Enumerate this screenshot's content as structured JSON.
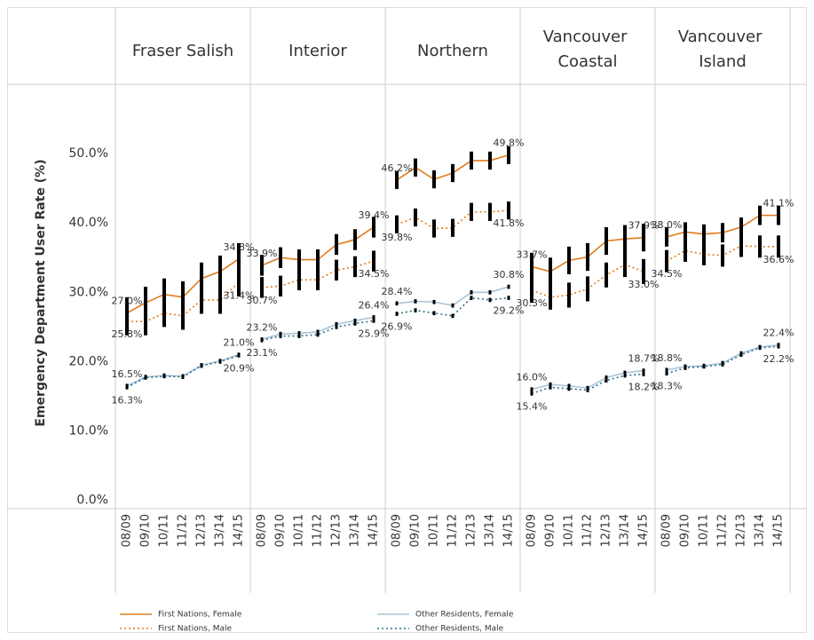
{
  "chart_data": {
    "type": "line",
    "ylabel": "Emergency Department User Rate (%)",
    "ylim": [
      -1.2,
      60
    ],
    "yticks": [
      {
        "value": 0,
        "label": "0.0%"
      },
      {
        "value": 10,
        "label": "10.0%"
      },
      {
        "value": 20,
        "label": "20.0%"
      },
      {
        "value": 30,
        "label": "30.0%"
      },
      {
        "value": 40,
        "label": "40.0%"
      },
      {
        "value": 50,
        "label": "50.0%"
      }
    ],
    "categories": [
      "08/09",
      "09/10",
      "10/11",
      "11/12",
      "12/13",
      "13/14",
      "14/15"
    ],
    "series": [
      {
        "name": "First Nations, Female",
        "color": "#e07b1a",
        "dash": "solid"
      },
      {
        "name": "First Nations, Male",
        "color": "#e07b1a",
        "dash": "dotted"
      },
      {
        "name": "Other Residents, Female",
        "color": "#a9c4d8",
        "dash": "solid"
      },
      {
        "name": "Other Residents, Male",
        "color": "#2a6f8a",
        "dash": "dotted"
      }
    ],
    "panels": [
      {
        "title": "Fraser Salish",
        "series": [
          {
            "values": [
              27.0,
              28.5,
              29.7,
              29.3,
              32.0,
              33.0,
              34.8
            ],
            "value_labels": [
              "27.0%",
              null,
              null,
              null,
              null,
              null,
              "34.8%"
            ],
            "errors": [
              2.3,
              2.3,
              2.3,
              2.3,
              2.3,
              2.3,
              2.3
            ]
          },
          {
            "values": [
              25.8,
              25.8,
              27.0,
              26.6,
              28.9,
              28.9,
              31.4
            ],
            "value_labels": [
              "25.8%",
              null,
              null,
              null,
              null,
              null,
              "31.4%"
            ],
            "errors": [
              2.0,
              2.0,
              2.0,
              2.0,
              2.0,
              2.0,
              2.0
            ]
          },
          {
            "values": [
              16.5,
              17.8,
              18.0,
              17.9,
              19.5,
              20.1,
              21.0
            ],
            "value_labels": [
              "16.5%",
              null,
              null,
              null,
              null,
              null,
              "21.0%"
            ],
            "errors": [
              0.3,
              0.3,
              0.3,
              0.3,
              0.3,
              0.3,
              0.3
            ]
          },
          {
            "values": [
              16.3,
              17.7,
              17.9,
              17.8,
              19.4,
              20.0,
              20.9
            ],
            "value_labels": [
              "16.3%",
              null,
              null,
              null,
              null,
              null,
              "20.9%"
            ],
            "errors": [
              0.3,
              0.3,
              0.3,
              0.3,
              0.3,
              0.3,
              0.3
            ]
          }
        ]
      },
      {
        "title": "Interior",
        "series": [
          {
            "values": [
              33.9,
              35.0,
              34.7,
              34.7,
              36.9,
              37.6,
              39.4
            ],
            "value_labels": [
              "33.9%",
              null,
              null,
              null,
              null,
              null,
              "39.4%"
            ],
            "errors": [
              1.5,
              1.5,
              1.5,
              1.5,
              1.5,
              1.5,
              1.5
            ]
          },
          {
            "values": [
              30.7,
              30.9,
              31.8,
              31.8,
              33.2,
              33.7,
              34.5
            ],
            "value_labels": [
              "30.7%",
              null,
              null,
              null,
              null,
              null,
              "34.5%"
            ],
            "errors": [
              1.5,
              1.5,
              1.5,
              1.5,
              1.5,
              1.5,
              1.5
            ]
          },
          {
            "values": [
              23.2,
              24.0,
              24.1,
              24.3,
              25.4,
              25.9,
              26.4
            ],
            "value_labels": [
              "23.2%",
              null,
              null,
              null,
              null,
              null,
              "26.4%"
            ],
            "errors": [
              0.3,
              0.3,
              0.3,
              0.3,
              0.3,
              0.3,
              0.3
            ]
          },
          {
            "values": [
              23.1,
              23.7,
              23.7,
              23.9,
              25.0,
              25.5,
              25.9
            ],
            "value_labels": [
              "23.1%",
              null,
              null,
              null,
              null,
              null,
              "25.9%"
            ],
            "errors": [
              0.3,
              0.3,
              0.3,
              0.3,
              0.3,
              0.3,
              0.3
            ]
          }
        ]
      },
      {
        "title": "Northern",
        "series": [
          {
            "values": [
              46.2,
              48.0,
              46.3,
              47.2,
              49.0,
              49.0,
              49.8
            ],
            "value_labels": [
              "46.2%",
              null,
              null,
              null,
              null,
              null,
              "49.8%"
            ],
            "errors": [
              1.3,
              1.3,
              1.3,
              1.3,
              1.3,
              1.3,
              1.3
            ]
          },
          {
            "values": [
              39.8,
              40.8,
              39.2,
              39.3,
              41.6,
              41.6,
              41.8
            ],
            "value_labels": [
              "39.8%",
              null,
              null,
              null,
              null,
              null,
              "41.8%"
            ],
            "errors": [
              1.3,
              1.3,
              1.3,
              1.3,
              1.3,
              1.3,
              1.3
            ]
          },
          {
            "values": [
              28.4,
              28.7,
              28.6,
              28.1,
              30.0,
              30.0,
              30.8
            ],
            "value_labels": [
              "28.4%",
              null,
              null,
              null,
              null,
              null,
              "30.8%"
            ],
            "errors": [
              0.3,
              0.3,
              0.3,
              0.3,
              0.3,
              0.3,
              0.3
            ]
          },
          {
            "values": [
              26.9,
              27.4,
              27.0,
              26.6,
              29.2,
              28.9,
              29.2
            ],
            "value_labels": [
              "26.9%",
              null,
              null,
              null,
              null,
              null,
              "29.2%"
            ],
            "errors": [
              0.3,
              0.3,
              0.3,
              0.3,
              0.3,
              0.3,
              0.3
            ]
          }
        ]
      },
      {
        "title": "Vancouver Coastal",
        "series": [
          {
            "values": [
              33.7,
              33.0,
              34.6,
              35.1,
              37.4,
              37.7,
              37.9
            ],
            "value_labels": [
              "33.7%",
              null,
              null,
              null,
              null,
              null,
              "37.9%"
            ],
            "errors": [
              2.0,
              2.0,
              2.0,
              2.0,
              2.0,
              2.0,
              2.0
            ]
          },
          {
            "values": [
              30.3,
              29.3,
              29.6,
              30.5,
              32.5,
              34.0,
              33.0
            ],
            "value_labels": [
              "30.3%",
              null,
              null,
              null,
              null,
              null,
              "33.0%"
            ],
            "errors": [
              1.8,
              1.8,
              1.8,
              1.8,
              1.8,
              1.8,
              1.8
            ]
          },
          {
            "values": [
              16.0,
              16.7,
              16.5,
              16.2,
              17.7,
              18.4,
              18.7
            ],
            "value_labels": [
              "16.0%",
              null,
              null,
              null,
              null,
              null,
              "18.7%"
            ],
            "errors": [
              0.3,
              0.3,
              0.3,
              0.3,
              0.3,
              0.3,
              0.3
            ]
          },
          {
            "values": [
              15.4,
              16.3,
              16.1,
              15.9,
              17.3,
              18.0,
              18.2
            ],
            "value_labels": [
              "15.4%",
              null,
              null,
              null,
              null,
              null,
              "18.2%"
            ],
            "errors": [
              0.3,
              0.3,
              0.3,
              0.3,
              0.3,
              0.3,
              0.3
            ]
          }
        ]
      },
      {
        "title": "Vancouver Island",
        "series": [
          {
            "values": [
              38.0,
              38.7,
              38.4,
              38.6,
              39.4,
              41.1,
              41.1
            ],
            "value_labels": [
              "38.0%",
              null,
              null,
              null,
              null,
              null,
              "41.1%"
            ],
            "errors": [
              1.4,
              1.4,
              1.4,
              1.4,
              1.4,
              1.4,
              1.4
            ]
          },
          {
            "values": [
              34.5,
              36.0,
              35.5,
              35.3,
              36.7,
              36.6,
              36.6
            ],
            "value_labels": [
              "34.5%",
              null,
              null,
              null,
              null,
              null,
              "36.6%"
            ],
            "errors": [
              1.6,
              1.6,
              1.6,
              1.6,
              1.6,
              1.6,
              1.6
            ]
          },
          {
            "values": [
              18.8,
              19.3,
              19.4,
              19.8,
              21.2,
              22.1,
              22.4
            ],
            "value_labels": [
              "18.8%",
              null,
              null,
              null,
              null,
              null,
              "22.4%"
            ],
            "errors": [
              0.3,
              0.3,
              0.3,
              0.3,
              0.3,
              0.3,
              0.3
            ]
          },
          {
            "values": [
              18.3,
              19.1,
              19.3,
              19.6,
              21.0,
              22.0,
              22.2
            ],
            "value_labels": [
              "18.3%",
              null,
              null,
              null,
              null,
              null,
              "22.2%"
            ],
            "errors": [
              0.3,
              0.3,
              0.3,
              0.3,
              0.3,
              0.3,
              0.3
            ]
          }
        ]
      }
    ]
  }
}
